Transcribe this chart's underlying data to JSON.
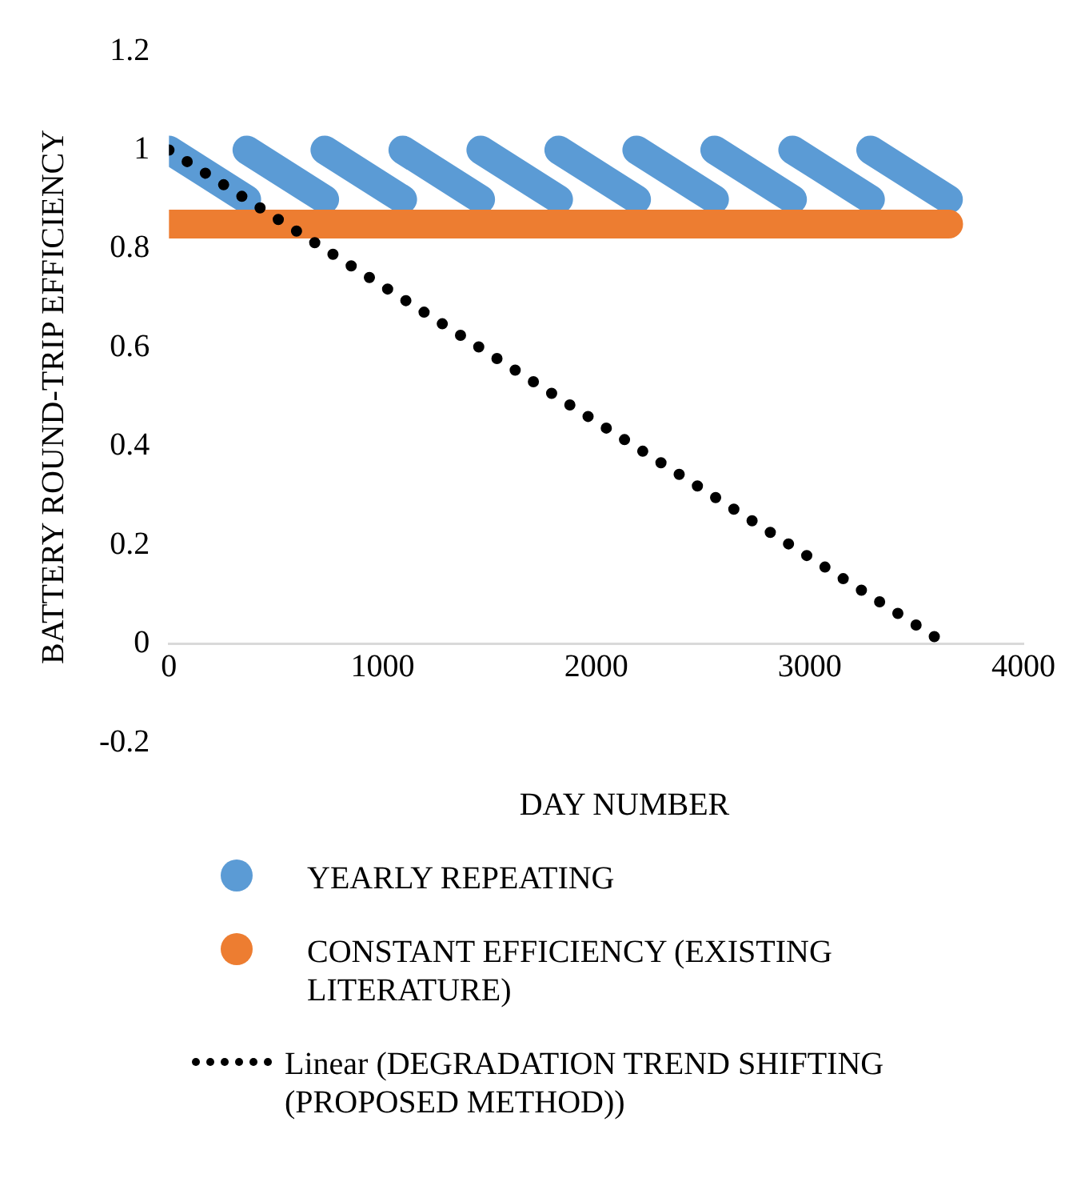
{
  "chart_data": {
    "type": "line",
    "xlabel": "DAY NUMBER",
    "ylabel": "BATTERY ROUND-TRIP EFFICIENCY",
    "xlim": [
      0,
      4000
    ],
    "xticks": [
      0,
      1000,
      2000,
      3000,
      4000
    ],
    "ylim": [
      -0.2,
      1.2
    ],
    "yticks": [
      -0.2,
      0,
      0.2,
      0.4,
      0.6,
      0.8,
      1,
      1.2
    ],
    "grid": false,
    "legend": "bottom",
    "marker": "none",
    "line_style": "solid",
    "series": [
      {
        "name": "YEARLY REPEATING",
        "color": "#5b9bd5",
        "x": [
          0,
          364
        ],
        "values": [
          1,
          0.9
        ]
      },
      {
        "color": "#5b9bd5",
        "x": [
          365,
          729
        ],
        "values": [
          1,
          0.9
        ]
      },
      {
        "color": "#5b9bd5",
        "x": [
          730,
          1094
        ],
        "values": [
          1,
          0.9
        ]
      },
      {
        "color": "#5b9bd5",
        "x": [
          1095,
          1459
        ],
        "values": [
          1,
          0.9
        ]
      },
      {
        "color": "#5b9bd5",
        "x": [
          1460,
          1824
        ],
        "values": [
          1,
          0.9
        ]
      },
      {
        "color": "#5b9bd5",
        "x": [
          1825,
          2189
        ],
        "values": [
          1,
          0.9
        ]
      },
      {
        "color": "#5b9bd5",
        "x": [
          2190,
          2554
        ],
        "values": [
          1,
          0.9
        ]
      },
      {
        "color": "#5b9bd5",
        "x": [
          2555,
          2919
        ],
        "values": [
          1,
          0.9
        ]
      },
      {
        "color": "#5b9bd5",
        "x": [
          2920,
          3284
        ],
        "values": [
          1,
          0.9
        ]
      },
      {
        "color": "#5b9bd5",
        "x": [
          3285,
          3649
        ],
        "values": [
          1,
          0.9
        ]
      },
      {
        "name": "CONSTANT EFFICIENCY (EXISTING LITERATURE)",
        "color": "#ed7d31",
        "x": [
          0,
          3650
        ],
        "values": [
          0.85,
          0.85
        ]
      },
      {
        "name": "Linear (DEGRADATION TREND SHIFTING (PROPOSED METHOD))",
        "line_style": "dotted",
        "color": "#000000",
        "x": [
          0,
          3600
        ],
        "values": [
          1,
          0.01
        ]
      }
    ]
  }
}
